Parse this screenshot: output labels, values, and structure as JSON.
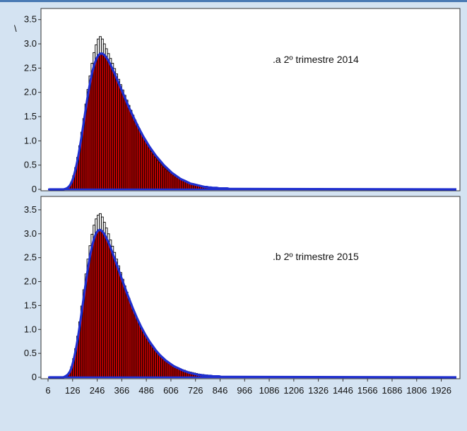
{
  "chart_data": {
    "type": "bar",
    "corner_mark": "\\",
    "background_color": "#d4e3f2",
    "colors": {
      "bars": "#cc0000",
      "outline": "#000000",
      "fit": "#1f2fd0"
    },
    "x_ticks": [
      "6",
      "126",
      "246",
      "366",
      "486",
      "606",
      "726",
      "846",
      "966",
      "1086",
      "1206",
      "1326",
      "1446",
      "1566",
      "1686",
      "1806",
      "1926"
    ],
    "x_range": [
      6,
      2000
    ],
    "panels": [
      {
        "label": ".a 2º trimestre 2014",
        "ylim": [
          0,
          3.7
        ],
        "y_ticks": [
          "0",
          "0.5",
          "1.0",
          "1.5",
          "2.0",
          "2.5",
          "3.0",
          "3.5"
        ],
        "series": [
          {
            "name": "observed",
            "kind": "histogram",
            "x_start": 6,
            "bin_width": 10,
            "values": [
              0,
              0,
              0,
              0,
              0,
              0,
              0,
              0,
              0.01,
              0.03,
              0.07,
              0.15,
              0.28,
              0.45,
              0.66,
              0.9,
              1.18,
              1.46,
              1.76,
              2.06,
              2.34,
              2.6,
              2.82,
              2.98,
              3.1,
              3.15,
              3.1,
              3.0,
              2.9,
              2.8,
              2.7,
              2.6,
              2.49,
              2.38,
              2.27,
              2.16,
              2.05,
              1.94,
              1.84,
              1.73,
              1.63,
              1.53,
              1.43,
              1.34,
              1.25,
              1.16,
              1.07,
              0.99,
              0.92,
              0.85,
              0.78,
              0.72,
              0.66,
              0.6,
              0.55,
              0.5,
              0.46,
              0.42,
              0.38,
              0.35,
              0.32,
              0.29,
              0.26,
              0.24,
              0.22,
              0.2,
              0.18,
              0.16,
              0.15,
              0.13,
              0.12,
              0.11,
              0.1,
              0.09,
              0.08,
              0.07,
              0.06,
              0.06,
              0.05,
              0.05,
              0.04,
              0.04,
              0.03,
              0.03,
              0.03,
              0.02,
              0.02,
              0.02,
              0.02,
              0.02
            ]
          },
          {
            "name": "model",
            "kind": "histogram",
            "x_start": 6,
            "bin_width": 10,
            "values": [
              0,
              0,
              0,
              0,
              0,
              0,
              0,
              0,
              0.01,
              0.03,
              0.07,
              0.14,
              0.26,
              0.42,
              0.62,
              0.86,
              1.12,
              1.4,
              1.68,
              1.95,
              2.19,
              2.4,
              2.56,
              2.68,
              2.76,
              2.8,
              2.8,
              2.77,
              2.72,
              2.65,
              2.57,
              2.48,
              2.39,
              2.29,
              2.19,
              2.09,
              1.99,
              1.89,
              1.79,
              1.69,
              1.6,
              1.51,
              1.42,
              1.33,
              1.25,
              1.17,
              1.09,
              1.02,
              0.95,
              0.88,
              0.82,
              0.76,
              0.7,
              0.65,
              0.6,
              0.55,
              0.5,
              0.46,
              0.42,
              0.38,
              0.34,
              0.31,
              0.28,
              0.25,
              0.22,
              0.2,
              0.18,
              0.16,
              0.14,
              0.12,
              0.11,
              0.1,
              0.09,
              0.08,
              0.07,
              0.06,
              0.05,
              0.05,
              0.04,
              0.04,
              0.03,
              0.03,
              0.03,
              0.02,
              0.02,
              0.02,
              0.02,
              0.02,
              0.01,
              0.01
            ]
          }
        ]
      },
      {
        "label": ".b 2º trimestre 2015",
        "ylim": [
          0,
          3.75
        ],
        "y_ticks": [
          "0",
          "0.5",
          "1.0",
          "1.5",
          "2.0",
          "2.5",
          "3.0",
          "3.5"
        ],
        "series": [
          {
            "name": "observed",
            "kind": "histogram",
            "x_start": 6,
            "bin_width": 10,
            "values": [
              0,
              0,
              0,
              0,
              0,
              0,
              0,
              0,
              0.02,
              0.05,
              0.11,
              0.22,
              0.39,
              0.6,
              0.86,
              1.16,
              1.49,
              1.83,
              2.16,
              2.47,
              2.75,
              2.99,
              3.18,
              3.31,
              3.39,
              3.42,
              3.35,
              3.24,
              3.12,
              3.0,
              2.87,
              2.74,
              2.61,
              2.47,
              2.33,
              2.19,
              2.05,
              1.91,
              1.78,
              1.65,
              1.53,
              1.42,
              1.31,
              1.21,
              1.11,
              1.02,
              0.94,
              0.86,
              0.79,
              0.72,
              0.66,
              0.6,
              0.55,
              0.5,
              0.46,
              0.42,
              0.38,
              0.35,
              0.32,
              0.29,
              0.26,
              0.24,
              0.22,
              0.2,
              0.18,
              0.16,
              0.15,
              0.13,
              0.12,
              0.11,
              0.1,
              0.09,
              0.08,
              0.07,
              0.06,
              0.06,
              0.05,
              0.05,
              0.04,
              0.04,
              0.03,
              0.03,
              0.03,
              0.02,
              0.02,
              0.02,
              0.02,
              0.02,
              0.01,
              0.01
            ]
          },
          {
            "name": "model",
            "kind": "histogram",
            "x_start": 6,
            "bin_width": 10,
            "values": [
              0,
              0,
              0,
              0,
              0,
              0,
              0,
              0,
              0.02,
              0.05,
              0.1,
              0.2,
              0.36,
              0.56,
              0.8,
              1.08,
              1.38,
              1.69,
              1.99,
              2.28,
              2.53,
              2.74,
              2.9,
              3.01,
              3.07,
              3.08,
              3.05,
              2.99,
              2.91,
              2.82,
              2.71,
              2.6,
              2.48,
              2.36,
              2.24,
              2.12,
              2.0,
              1.88,
              1.76,
              1.65,
              1.54,
              1.43,
              1.33,
              1.23,
              1.14,
              1.05,
              0.97,
              0.89,
              0.82,
              0.75,
              0.69,
              0.63,
              0.57,
              0.52,
              0.47,
              0.43,
              0.39,
              0.35,
              0.32,
              0.29,
              0.26,
              0.23,
              0.21,
              0.19,
              0.17,
              0.15,
              0.13,
              0.12,
              0.1,
              0.09,
              0.08,
              0.07,
              0.06,
              0.05,
              0.05,
              0.04,
              0.04,
              0.03,
              0.03,
              0.03,
              0.02,
              0.02,
              0.02,
              0.02,
              0.01,
              0.01,
              0.01,
              0.01,
              0.01,
              0.01
            ]
          }
        ]
      }
    ]
  }
}
